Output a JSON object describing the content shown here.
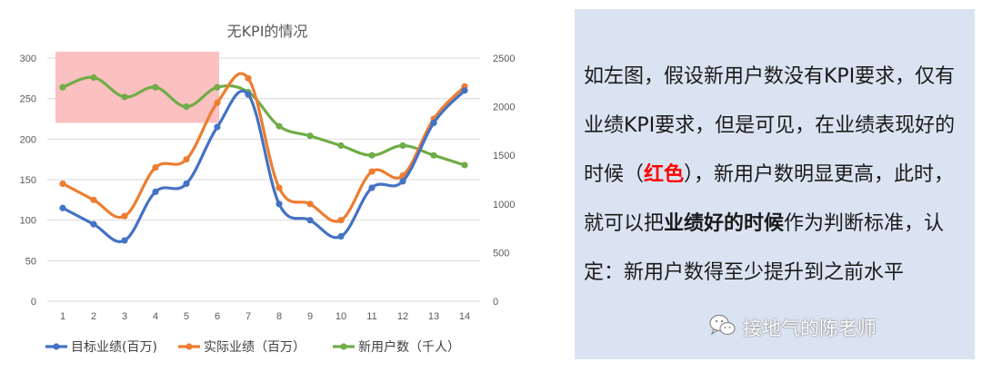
{
  "chart_data": {
    "type": "line",
    "title": "无KPI的情况",
    "categories": [
      "1",
      "2",
      "3",
      "4",
      "5",
      "6",
      "7",
      "8",
      "9",
      "10",
      "11",
      "12",
      "13",
      "14"
    ],
    "y_left_ticks": [
      "0",
      "50",
      "100",
      "150",
      "200",
      "250",
      "300"
    ],
    "y_right_ticks": [
      "0",
      "500",
      "1000",
      "1500",
      "2000",
      "2500"
    ],
    "ylim_left": [
      0,
      300
    ],
    "ylim_right": [
      0,
      2500
    ],
    "highlight_region": {
      "x_from": 1,
      "x_to": 6,
      "y_from": 220,
      "y_to": 308,
      "color": "#fbc0c0"
    },
    "series": [
      {
        "name": "目标业绩(百万)",
        "axis": "left",
        "color": "#4472c4",
        "values": [
          115,
          95,
          75,
          135,
          145,
          215,
          255,
          120,
          100,
          80,
          140,
          148,
          220,
          260
        ]
      },
      {
        "name": "实际业绩（百万）",
        "axis": "left",
        "color": "#ed7d31",
        "values": [
          145,
          125,
          105,
          165,
          175,
          245,
          275,
          140,
          120,
          100,
          160,
          155,
          225,
          265
        ]
      },
      {
        "name": "新用户数（千人）",
        "axis": "right",
        "color": "#70ad47",
        "values": [
          2200,
          2300,
          2100,
          2200,
          2000,
          2200,
          2150,
          1800,
          1700,
          1600,
          1500,
          1600,
          1500,
          1400
        ]
      }
    ],
    "legend_position": "bottom"
  },
  "text_panel": {
    "part1": "如左图，假设新用户数没有KPI要求，仅有业绩KPI要求，但是可见，在业绩表现好的时候（",
    "red_phrase": "红色",
    "part2": "），新用户数明显更高，此时，就可以把",
    "bold_phrase": "业绩好的时候",
    "part3": "作为判断标准，认定：新用户数得至少提升到之前水平"
  },
  "watermark": {
    "text": "接地气的陈老师",
    "icon": "wechat-icon"
  }
}
